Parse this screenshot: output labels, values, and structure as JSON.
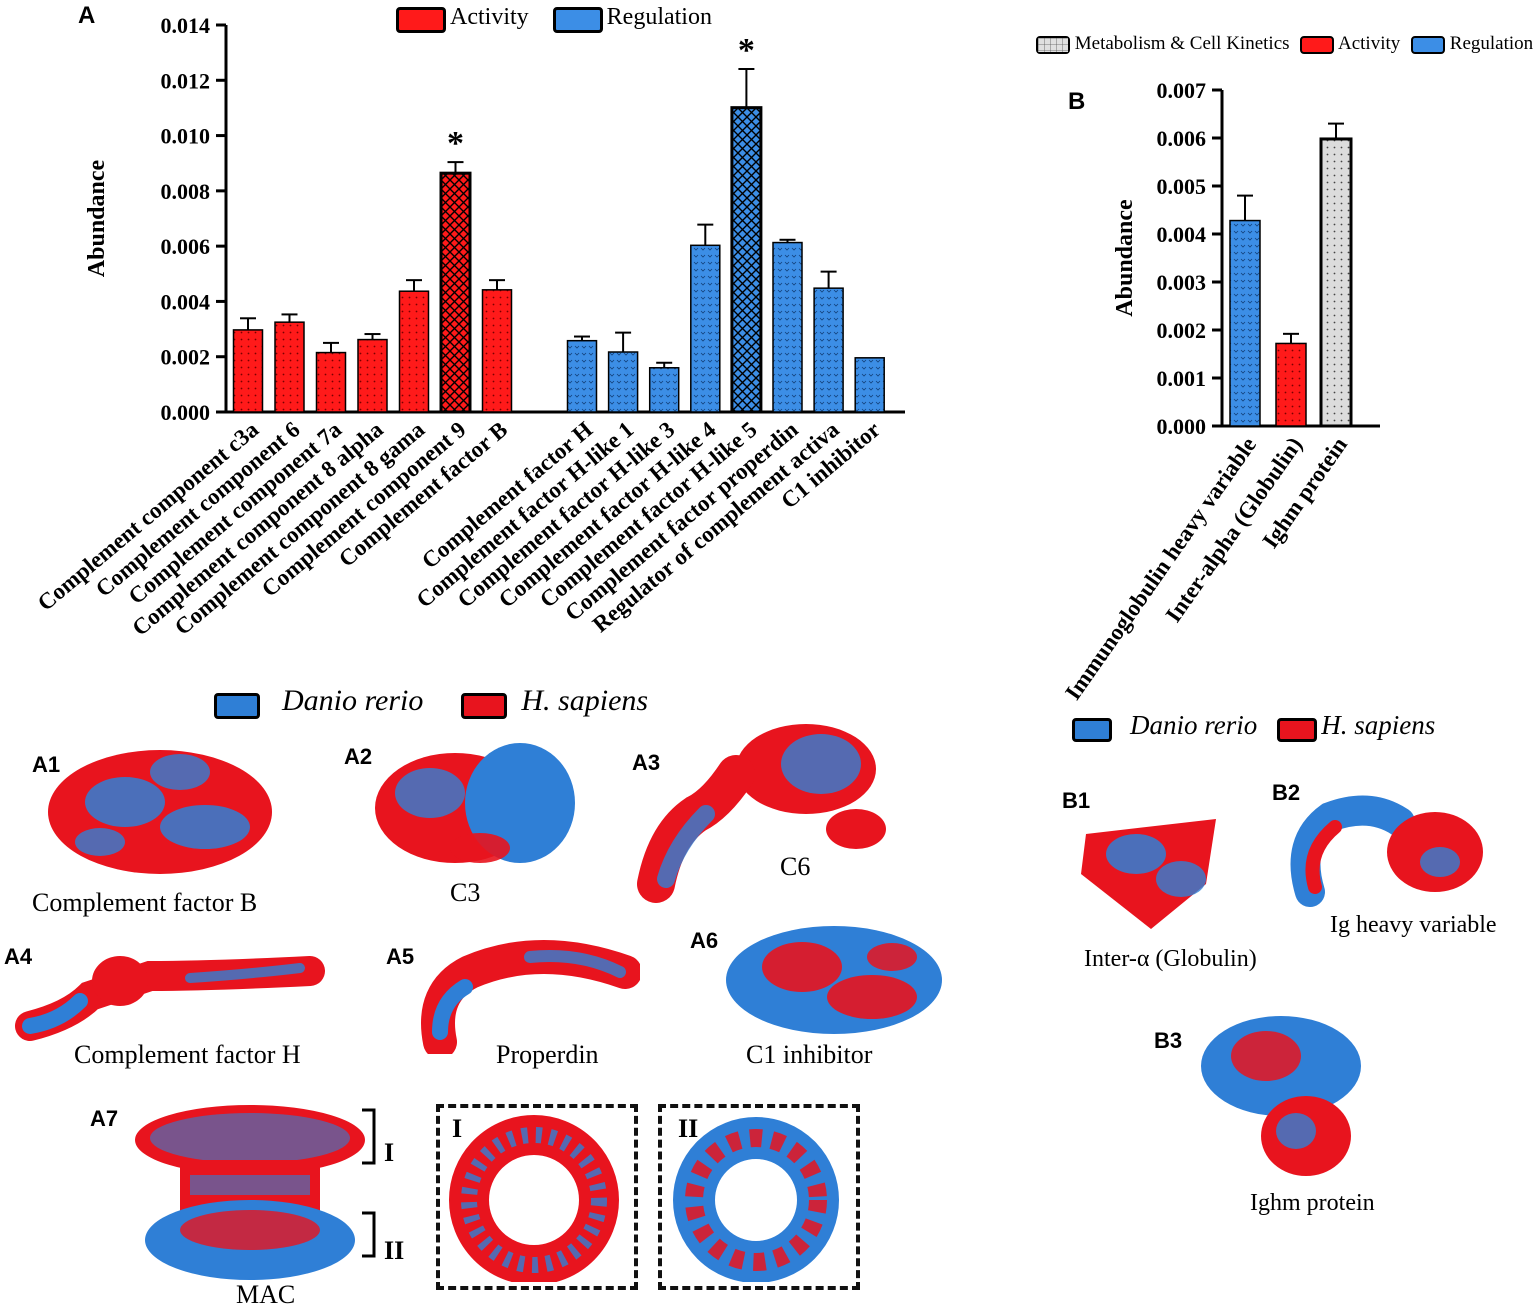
{
  "panel_a": {
    "letter": "A",
    "legend": {
      "activity": "Activity",
      "regulation": "Regulation"
    },
    "colors": {
      "activity": "#ff1a1a",
      "regulation": "#3c8ee6"
    }
  },
  "panel_b": {
    "letter": "B",
    "legend": {
      "metabolism": "Metabolism & Cell Kinetics",
      "activity": "Activity",
      "regulation": "Regulation"
    },
    "colors": {
      "metabolism": "#d9d9d9",
      "activity": "#ff1a1a",
      "regulation": "#3c8ee6"
    }
  },
  "chart_data": [
    {
      "type": "bar",
      "panel": "A",
      "ylabel": "Abundance",
      "ylim": [
        0,
        0.014
      ],
      "yticks": [
        "0.000",
        "0.002",
        "0.004",
        "0.006",
        "0.008",
        "0.010",
        "0.012",
        "0.014"
      ],
      "categories": [
        "Complement component c3a",
        "Complement component 6",
        "Complement component 7a",
        "Complement component 8 alpha",
        "Complement component 8 gama",
        "Complement component 9",
        "Complement factor B",
        "Complement factor H",
        "Complement factor H-like 1",
        "Complement factor H-like 3",
        "Complement factor H-like 4",
        "Complement factor H-like 5",
        "Complement factor properdin",
        "Regulator of complement activa",
        "C1 inhibitor"
      ],
      "values": [
        0.00297,
        0.00325,
        0.00215,
        0.00262,
        0.00437,
        0.00864,
        0.00442,
        0.00258,
        0.00217,
        0.0016,
        0.00603,
        0.01101,
        0.00613,
        0.00448,
        0.00196
      ],
      "errors": [
        0.00042,
        0.00028,
        0.00035,
        0.0002,
        0.0004,
        0.0004,
        0.00035,
        0.00015,
        0.0007,
        0.00018,
        0.00075,
        0.0014,
        0.0001,
        0.0006,
        0.0
      ],
      "groups": [
        "activity",
        "activity",
        "activity",
        "activity",
        "activity",
        "activity",
        "activity",
        "regulation",
        "regulation",
        "regulation",
        "regulation",
        "regulation",
        "regulation",
        "regulation",
        "regulation"
      ],
      "significant": [
        false,
        false,
        false,
        false,
        false,
        true,
        false,
        false,
        false,
        false,
        false,
        true,
        false,
        false,
        false
      ],
      "annotation": "*"
    },
    {
      "type": "bar",
      "panel": "B",
      "ylabel": "Abundance",
      "ylim": [
        0,
        0.007
      ],
      "yticks": [
        "0.000",
        "0.001",
        "0.002",
        "0.003",
        "0.004",
        "0.005",
        "0.006",
        "0.007"
      ],
      "categories": [
        "Immunoglobulin heavy variable",
        "Inter-alpha (Globulin)",
        "Ighm protein"
      ],
      "values": [
        0.00428,
        0.00172,
        0.00598
      ],
      "errors": [
        0.00052,
        0.0002,
        0.00032
      ],
      "groups": [
        "regulation",
        "activity",
        "metabolism"
      ]
    }
  ],
  "structures": {
    "legend": {
      "danio": "Danio rerio",
      "human": "H. sapiens"
    },
    "a": [
      {
        "label": "A1",
        "caption": "Complement factor B"
      },
      {
        "label": "A2",
        "caption": "C3"
      },
      {
        "label": "A3",
        "caption": "C6"
      },
      {
        "label": "A4",
        "caption": "Complement factor H"
      },
      {
        "label": "A5",
        "caption": "Properdin"
      },
      {
        "label": "A6",
        "caption": "C1 inhibitor"
      }
    ],
    "a7": {
      "label": "A7",
      "caption": "MAC",
      "part1": "I",
      "part2": "II"
    },
    "b": [
      {
        "label": "B1",
        "caption": "Inter-α (Globulin)"
      },
      {
        "label": "B2",
        "caption": "Ig heavy variable"
      },
      {
        "label": "B3",
        "caption": "Ighm protein"
      }
    ]
  }
}
